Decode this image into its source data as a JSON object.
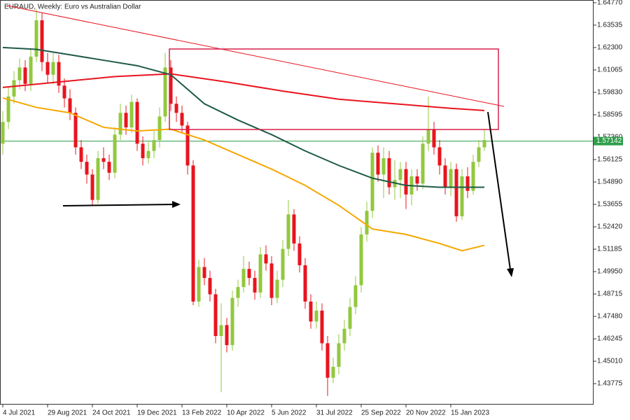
{
  "chart_data": {
    "type": "candlestick",
    "title": "EURAUD, Weekly:  Euro vs Australian Dollar",
    "categories": [
      "4 Jul 2021",
      null,
      null,
      null,
      null,
      null,
      null,
      null,
      "29 Aug 2021",
      null,
      null,
      null,
      null,
      null,
      null,
      null,
      "24 Oct 2021",
      null,
      null,
      null,
      null,
      null,
      null,
      null,
      "19 Dec 2021",
      null,
      null,
      null,
      null,
      null,
      null,
      null,
      "13 Feb 2022",
      null,
      null,
      null,
      null,
      null,
      null,
      null,
      "10 Apr 2022",
      null,
      null,
      null,
      null,
      null,
      null,
      null,
      "5 Jun 2022",
      null,
      null,
      null,
      null,
      null,
      null,
      null,
      "31 Jul 2022",
      null,
      null,
      null,
      null,
      null,
      null,
      null,
      "25 Sep 2022",
      null,
      null,
      null,
      null,
      null,
      null,
      null,
      "20 Nov 2022",
      null,
      null,
      null,
      null,
      null,
      null,
      null,
      "15 Jan 2023",
      null,
      null,
      null,
      null,
      null,
      null
    ],
    "open": [
      1.57,
      1.582,
      1.596,
      1.605,
      1.612,
      1.603,
      1.618,
      1.638,
      1.615,
      1.608,
      1.615,
      1.602,
      1.595,
      1.587,
      1.568,
      1.56,
      1.553,
      1.539,
      1.562,
      1.56,
      1.554,
      1.575,
      1.587,
      1.579,
      1.593,
      1.57,
      1.562,
      1.566,
      1.572,
      1.585,
      1.612,
      1.592,
      1.587,
      1.58,
      1.558,
      1.483,
      1.502,
      1.496,
      1.487,
      1.464,
      1.47,
      1.459,
      1.485,
      1.491,
      1.501,
      1.496,
      1.488,
      1.509,
      1.504,
      1.485,
      1.495,
      1.512,
      1.531,
      1.515,
      1.503,
      1.483,
      1.472,
      1.478,
      1.46,
      1.441,
      1.447,
      1.46,
      1.468,
      1.48,
      1.492,
      1.52,
      1.533,
      1.565,
      1.553,
      1.562,
      1.546,
      1.55,
      1.556,
      1.542,
      1.552,
      1.548,
      1.57,
      1.578,
      1.568,
      1.558,
      1.546,
      1.556,
      1.53,
      1.552,
      1.544,
      1.56,
      1.568
    ],
    "high": [
      1.588,
      1.601,
      1.61,
      1.617,
      1.616,
      1.622,
      1.644,
      1.642,
      1.62,
      1.62,
      1.619,
      1.606,
      1.6,
      1.59,
      1.572,
      1.564,
      1.556,
      1.566,
      1.568,
      1.564,
      1.579,
      1.592,
      1.591,
      1.597,
      1.595,
      1.574,
      1.571,
      1.577,
      1.59,
      1.62,
      1.616,
      1.596,
      1.591,
      1.582,
      1.561,
      1.506,
      1.507,
      1.5,
      1.49,
      1.482,
      1.474,
      1.489,
      1.495,
      1.508,
      1.505,
      1.5,
      1.513,
      1.514,
      1.508,
      1.5,
      1.517,
      1.539,
      1.534,
      1.519,
      1.507,
      1.487,
      1.483,
      1.482,
      1.464,
      1.452,
      1.465,
      1.473,
      1.485,
      1.497,
      1.524,
      1.538,
      1.568,
      1.569,
      1.568,
      1.566,
      1.561,
      1.56,
      1.56,
      1.556,
      1.556,
      1.574,
      1.596,
      1.582,
      1.572,
      1.562,
      1.56,
      1.559,
      1.556,
      1.557,
      1.564,
      1.572,
      1.578
    ],
    "low": [
      1.564,
      1.578,
      1.592,
      1.6,
      1.599,
      1.599,
      1.615,
      1.61,
      1.603,
      1.603,
      1.598,
      1.59,
      1.583,
      1.564,
      1.556,
      1.548,
      1.536,
      1.537,
      1.556,
      1.55,
      1.551,
      1.572,
      1.575,
      1.576,
      1.566,
      1.558,
      1.559,
      1.562,
      1.568,
      1.582,
      1.588,
      1.582,
      1.576,
      1.553,
      1.481,
      1.48,
      1.492,
      1.483,
      1.46,
      1.433,
      1.455,
      1.456,
      1.48,
      1.488,
      1.492,
      1.484,
      1.485,
      1.5,
      1.481,
      1.482,
      1.491,
      1.508,
      1.511,
      1.499,
      1.479,
      1.468,
      1.468,
      1.456,
      1.431,
      1.438,
      1.443,
      1.456,
      1.464,
      1.476,
      1.488,
      1.516,
      1.529,
      1.549,
      1.54,
      1.542,
      1.539,
      1.54,
      1.534,
      1.536,
      1.544,
      1.545,
      1.566,
      1.564,
      1.553,
      1.542,
      1.541,
      1.527,
      1.528,
      1.54,
      1.542,
      1.557,
      1.566
    ],
    "close": [
      1.582,
      1.596,
      1.605,
      1.612,
      1.603,
      1.618,
      1.638,
      1.615,
      1.608,
      1.615,
      1.602,
      1.595,
      1.587,
      1.568,
      1.56,
      1.553,
      1.539,
      1.562,
      1.56,
      1.554,
      1.575,
      1.587,
      1.579,
      1.593,
      1.57,
      1.562,
      1.566,
      1.572,
      1.585,
      1.612,
      1.592,
      1.587,
      1.58,
      1.558,
      1.483,
      1.502,
      1.496,
      1.487,
      1.464,
      1.47,
      1.459,
      1.485,
      1.491,
      1.501,
      1.496,
      1.488,
      1.509,
      1.504,
      1.485,
      1.495,
      1.512,
      1.531,
      1.515,
      1.503,
      1.483,
      1.472,
      1.478,
      1.46,
      1.441,
      1.447,
      1.46,
      1.468,
      1.48,
      1.492,
      1.52,
      1.533,
      1.565,
      1.553,
      1.562,
      1.546,
      1.55,
      1.556,
      1.542,
      1.552,
      1.548,
      1.57,
      1.578,
      1.568,
      1.558,
      1.546,
      1.556,
      1.53,
      1.552,
      1.544,
      1.56,
      1.568,
      1.572
    ],
    "up_color": "#92c83e",
    "down_color": "#e8141e",
    "lines": [
      {
        "color": "#e8141e",
        "x": [
          0,
          10,
          20,
          30,
          40,
          50,
          60,
          70,
          80,
          86
        ],
        "values": [
          1.601,
          1.604,
          1.607,
          1.6085,
          1.604,
          1.599,
          1.5945,
          1.592,
          1.5895,
          1.5883
        ]
      },
      {
        "color": "#1e5a46",
        "x": [
          0,
          6,
          12,
          18,
          24,
          30,
          36,
          42,
          48,
          54,
          60,
          66,
          72,
          78,
          86
        ],
        "values": [
          1.623,
          1.622,
          1.619,
          1.616,
          1.613,
          1.608,
          1.592,
          1.583,
          1.575,
          1.566,
          1.558,
          1.551,
          1.547,
          1.546,
          1.546
        ]
      },
      {
        "color": "#f5a800",
        "x": [
          0,
          6,
          12,
          18,
          24,
          30,
          36,
          42,
          48,
          54,
          60,
          66,
          72,
          78,
          82,
          86
        ],
        "values": [
          1.5952,
          1.59,
          1.587,
          1.579,
          1.577,
          1.578,
          1.572,
          1.564,
          1.556,
          1.547,
          1.536,
          1.523,
          1.52,
          1.515,
          1.511,
          1.514
        ]
      }
    ],
    "last_price": 1.57142,
    "last_price_color": "#2e9e4a",
    "ylim": [
      1.4262,
      1.6492
    ],
    "yticks": [
      {
        "value": 1.6477,
        "label": "1.64770"
      },
      {
        "value": 1.63535,
        "label": "1.63535"
      },
      {
        "value": 1.623,
        "label": "1.62300"
      },
      {
        "value": 1.61065,
        "label": "1.61065"
      },
      {
        "value": 1.5983,
        "label": "1.59830"
      },
      {
        "value": 1.58595,
        "label": "1.58595"
      },
      {
        "value": 1.5736,
        "label": "1.57360"
      },
      {
        "value": 1.56125,
        "label": "1.56125"
      },
      {
        "value": 1.5489,
        "label": "1.54890"
      },
      {
        "value": 1.53655,
        "label": "1.53655"
      },
      {
        "value": 1.5242,
        "label": "1.52420"
      },
      {
        "value": 1.51185,
        "label": "1.51185"
      },
      {
        "value": 1.4995,
        "label": "1.49950"
      },
      {
        "value": 1.48715,
        "label": "1.48715"
      },
      {
        "value": 1.4748,
        "label": "1.47480"
      },
      {
        "value": 1.46245,
        "label": "1.46245"
      },
      {
        "value": 1.4501,
        "label": "1.45010"
      },
      {
        "value": 1.43775,
        "label": "1.43775"
      }
    ]
  }
}
